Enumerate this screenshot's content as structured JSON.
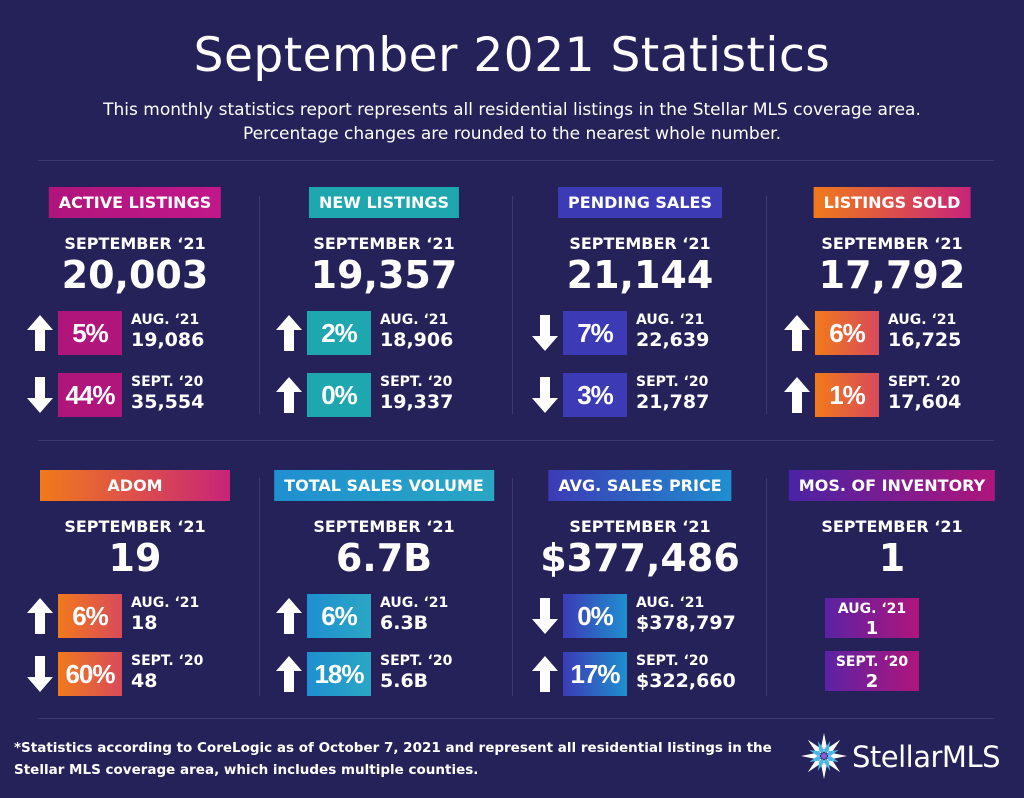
{
  "header": {
    "title": "September 2021 Statistics",
    "subtitle_line1": "This monthly statistics report represents all residential listings in the Stellar MLS coverage area.",
    "subtitle_line2": "Percentage changes are rounded to the nearest whole number."
  },
  "colors": {
    "background": "#252259",
    "magenta": "#b0157c",
    "teal": "#1fa7b0",
    "indigo": "#3c3bb5",
    "orange": "#f07a1b",
    "purple": "#6a23a4"
  },
  "cards": {
    "active": {
      "label": "ACTIVE LISTINGS",
      "period": "SEPTEMBER ‘21",
      "value": "20,003",
      "c1": {
        "direction": "up",
        "pct": "5%",
        "label": "AUG. ‘21",
        "value": "19,086"
      },
      "c2": {
        "direction": "down",
        "pct": "44%",
        "label": "SEPT. ‘20",
        "value": "35,554"
      }
    },
    "new": {
      "label": "NEW LISTINGS",
      "period": "SEPTEMBER ‘21",
      "value": "19,357",
      "c1": {
        "direction": "up",
        "pct": "2%",
        "label": "AUG. ‘21",
        "value": "18,906"
      },
      "c2": {
        "direction": "up",
        "pct": "0%",
        "label": "SEPT. ‘20",
        "value": "19,337"
      }
    },
    "pending": {
      "label": "PENDING SALES",
      "period": "SEPTEMBER ‘21",
      "value": "21,144",
      "c1": {
        "direction": "down",
        "pct": "7%",
        "label": "AUG. ‘21",
        "value": "22,639"
      },
      "c2": {
        "direction": "down",
        "pct": "3%",
        "label": "SEPT. ‘20",
        "value": "21,787"
      }
    },
    "sold": {
      "label": "LISTINGS SOLD",
      "period": "SEPTEMBER ‘21",
      "value": "17,792",
      "c1": {
        "direction": "up",
        "pct": "6%",
        "label": "AUG. ‘21",
        "value": "16,725"
      },
      "c2": {
        "direction": "up",
        "pct": "1%",
        "label": "SEPT. ‘20",
        "value": "17,604"
      }
    },
    "adom": {
      "label": "ADOM",
      "period": "SEPTEMBER ‘21",
      "value": "19",
      "c1": {
        "direction": "up",
        "pct": "6%",
        "label": "AUG. ‘21",
        "value": "18"
      },
      "c2": {
        "direction": "down",
        "pct": "60%",
        "label": "SEPT. ‘20",
        "value": "48"
      }
    },
    "volume": {
      "label": "TOTAL SALES VOLUME",
      "period": "SEPTEMBER ‘21",
      "value": "6.7B",
      "c1": {
        "direction": "up",
        "pct": "6%",
        "label": "AUG. ‘21",
        "value": "6.3B"
      },
      "c2": {
        "direction": "up",
        "pct": "18%",
        "label": "SEPT. ‘20",
        "value": "5.6B"
      }
    },
    "price": {
      "label": "AVG. SALES PRICE",
      "period": "SEPTEMBER ‘21",
      "value": "$377,486",
      "c1": {
        "direction": "down",
        "pct": "0%",
        "label": "AUG. ‘21",
        "value": "$378,797"
      },
      "c2": {
        "direction": "up",
        "pct": "17%",
        "label": "SEPT. ‘20",
        "value": "$322,660"
      }
    },
    "inventory": {
      "label": "MOS. OF INVENTORY",
      "period": "SEPTEMBER ‘21",
      "value": "1",
      "c1": {
        "label": "AUG. ‘21",
        "value": "1"
      },
      "c2": {
        "label": "SEPT. ‘20",
        "value": "2"
      }
    }
  },
  "footnote": {
    "line1": "*Statistics according to CoreLogic as of October 7, 2021 and represent all residential listings in the",
    "line2": "Stellar MLS coverage area, which includes multiple counties."
  },
  "logo": {
    "text": "StellarMLS",
    "icon": "starburst-icon"
  }
}
